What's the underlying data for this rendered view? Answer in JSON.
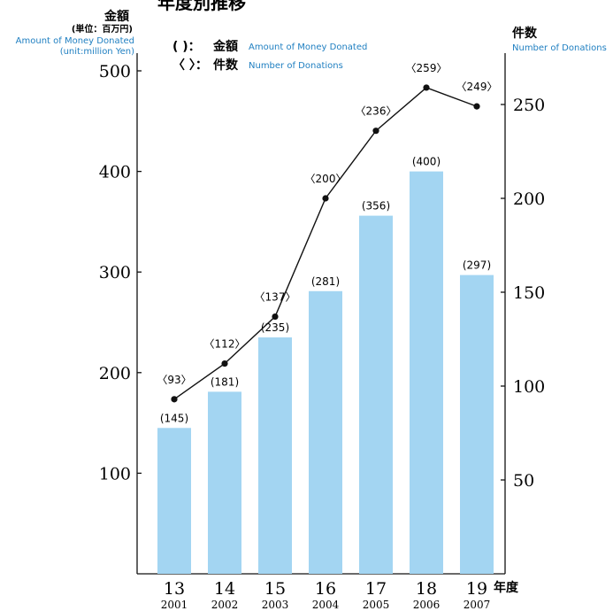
{
  "chart_data": {
    "type": "bar",
    "title": "年度別推移",
    "left_axis": {
      "label_jp": "金額",
      "unit_jp": "(単位：百万円)",
      "label_en": "Amount of Money Donated",
      "unit_en": "(unit:million Yen)",
      "range": [
        0,
        520
      ],
      "ticks": [
        100,
        200,
        300,
        400,
        500
      ]
    },
    "right_axis": {
      "label_jp": "件数",
      "label_en": "Number of Donations",
      "range": [
        0,
        260
      ],
      "ticks": [
        50,
        100,
        150,
        200,
        250
      ]
    },
    "x_axis_label_jp": "年度",
    "categories": [
      "13",
      "14",
      "15",
      "16",
      "17",
      "18",
      "19"
    ],
    "categories_sub": [
      "2001",
      "2002",
      "2003",
      "2004",
      "2005",
      "2006",
      "2007"
    ],
    "legend": [
      {
        "symbol": "(  )：",
        "label_jp": "金額",
        "label_en": "Amount of Money Donated"
      },
      {
        "symbol": "〈  〉：",
        "label_jp": "件数",
        "label_en": "Number of Donations"
      }
    ],
    "series": [
      {
        "type": "bar",
        "axis": "left",
        "values": [
          145,
          181,
          235,
          281,
          356,
          400,
          297
        ],
        "labels": [
          "(145)",
          "(181)",
          "(235)",
          "(281)",
          "(356)",
          "(400)",
          "(297)"
        ]
      },
      {
        "type": "line",
        "axis": "right",
        "values": [
          93,
          112,
          137,
          200,
          236,
          259,
          249
        ],
        "labels": [
          "〈93〉",
          "〈112〉",
          "〈137〉",
          "〈200〉",
          "〈236〉",
          "〈259〉",
          "〈249〉"
        ]
      }
    ],
    "grid": false,
    "colors": {
      "bar": "#a3d5f2",
      "line": "#111111",
      "blue_text": "#1f7fc1",
      "axis": "#111111"
    }
  }
}
